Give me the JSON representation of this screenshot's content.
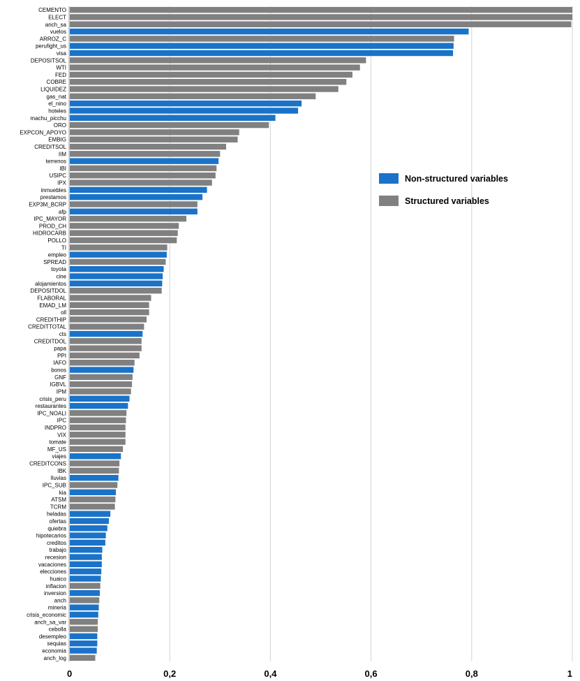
{
  "chart_data": {
    "type": "bar",
    "orientation": "horizontal",
    "xlim": [
      0,
      1
    ],
    "x_ticks": [
      "0",
      "0,2",
      "0,4",
      "0,6",
      "0,8",
      "1"
    ],
    "grid": "vertical",
    "legend_placement": "right",
    "legend": [
      {
        "name": "Non-structured variables",
        "color": "#1a73c8"
      },
      {
        "name": "Structured variables",
        "color": "#808080"
      }
    ],
    "bars": [
      {
        "label": "CEMENTO",
        "value": 1.0,
        "group": "structured"
      },
      {
        "label": "ELECT",
        "value": 1.0,
        "group": "structured"
      },
      {
        "label": "anch_sa",
        "value": 0.998,
        "group": "structured"
      },
      {
        "label": "vuelos",
        "value": 0.794,
        "group": "non-structured"
      },
      {
        "label": "ARROZ_C",
        "value": 0.765,
        "group": "structured"
      },
      {
        "label": "perufight_us",
        "value": 0.764,
        "group": "non-structured"
      },
      {
        "label": "visa",
        "value": 0.763,
        "group": "non-structured"
      },
      {
        "label": "DEPOSITSOL",
        "value": 0.59,
        "group": "structured"
      },
      {
        "label": "WTI",
        "value": 0.578,
        "group": "structured"
      },
      {
        "label": "FED",
        "value": 0.563,
        "group": "structured"
      },
      {
        "label": "COBRE",
        "value": 0.551,
        "group": "structured"
      },
      {
        "label": "LIQUIDEZ",
        "value": 0.535,
        "group": "structured"
      },
      {
        "label": "gas_nat",
        "value": 0.49,
        "group": "structured"
      },
      {
        "label": "el_nino",
        "value": 0.462,
        "group": "non-structured"
      },
      {
        "label": "hoteles",
        "value": 0.455,
        "group": "non-structured"
      },
      {
        "label": "machu_picchu",
        "value": 0.41,
        "group": "non-structured"
      },
      {
        "label": "ORO",
        "value": 0.397,
        "group": "structured"
      },
      {
        "label": "EXPCON_APOYO",
        "value": 0.338,
        "group": "structured"
      },
      {
        "label": "EMBIG",
        "value": 0.335,
        "group": "structured"
      },
      {
        "label": "CREDITSOL",
        "value": 0.312,
        "group": "structured"
      },
      {
        "label": "IIM",
        "value": 0.3,
        "group": "structured"
      },
      {
        "label": "terrenos",
        "value": 0.297,
        "group": "non-structured"
      },
      {
        "label": "IBI",
        "value": 0.293,
        "group": "structured"
      },
      {
        "label": "USIPC",
        "value": 0.291,
        "group": "structured"
      },
      {
        "label": "IPX",
        "value": 0.284,
        "group": "structured"
      },
      {
        "label": "inmuebles",
        "value": 0.274,
        "group": "non-structured"
      },
      {
        "label": "prestamos",
        "value": 0.265,
        "group": "non-structured"
      },
      {
        "label": "EXP3M_BCRP",
        "value": 0.255,
        "group": "structured"
      },
      {
        "label": "afp",
        "value": 0.255,
        "group": "non-structured"
      },
      {
        "label": "IPC_MAYOR",
        "value": 0.233,
        "group": "structured"
      },
      {
        "label": "PROD_CH",
        "value": 0.218,
        "group": "structured"
      },
      {
        "label": "HIDROCARB",
        "value": 0.216,
        "group": "structured"
      },
      {
        "label": "POLLO",
        "value": 0.214,
        "group": "structured"
      },
      {
        "label": "TI",
        "value": 0.195,
        "group": "structured"
      },
      {
        "label": "empleo",
        "value": 0.194,
        "group": "non-structured"
      },
      {
        "label": "SPREAD",
        "value": 0.192,
        "group": "structured"
      },
      {
        "label": "toyota",
        "value": 0.188,
        "group": "non-structured"
      },
      {
        "label": "cine",
        "value": 0.186,
        "group": "non-structured"
      },
      {
        "label": "alojamientos",
        "value": 0.185,
        "group": "non-structured"
      },
      {
        "label": "DEPOSITDOL",
        "value": 0.184,
        "group": "structured"
      },
      {
        "label": "FLABORAL",
        "value": 0.163,
        "group": "structured"
      },
      {
        "label": "EMAD_LM",
        "value": 0.159,
        "group": "structured"
      },
      {
        "label": "oll",
        "value": 0.159,
        "group": "structured"
      },
      {
        "label": "CREDITHIP",
        "value": 0.154,
        "group": "structured"
      },
      {
        "label": "CREDITTOTAL",
        "value": 0.149,
        "group": "structured"
      },
      {
        "label": "cts",
        "value": 0.146,
        "group": "non-structured"
      },
      {
        "label": "CREDITDOL",
        "value": 0.144,
        "group": "structured"
      },
      {
        "label": "papa",
        "value": 0.144,
        "group": "structured"
      },
      {
        "label": "PPI",
        "value": 0.14,
        "group": "structured"
      },
      {
        "label": "IAFO",
        "value": 0.13,
        "group": "structured"
      },
      {
        "label": "bonos",
        "value": 0.128,
        "group": "non-structured"
      },
      {
        "label": "GNF",
        "value": 0.126,
        "group": "structured"
      },
      {
        "label": "IGBVL",
        "value": 0.125,
        "group": "structured"
      },
      {
        "label": "IPM",
        "value": 0.123,
        "group": "structured"
      },
      {
        "label": "crisis_peru",
        "value": 0.12,
        "group": "non-structured"
      },
      {
        "label": "restaurantes",
        "value": 0.117,
        "group": "non-structured"
      },
      {
        "label": "IPC_NOALI",
        "value": 0.114,
        "group": "structured"
      },
      {
        "label": "IPC",
        "value": 0.113,
        "group": "structured"
      },
      {
        "label": "INDPRO",
        "value": 0.112,
        "group": "structured"
      },
      {
        "label": "VIX",
        "value": 0.112,
        "group": "structured"
      },
      {
        "label": "tomate",
        "value": 0.112,
        "group": "structured"
      },
      {
        "label": "MF_US",
        "value": 0.107,
        "group": "structured"
      },
      {
        "label": "viajes",
        "value": 0.103,
        "group": "non-structured"
      },
      {
        "label": "CREDITCONS",
        "value": 0.1,
        "group": "structured"
      },
      {
        "label": "IBK",
        "value": 0.099,
        "group": "structured"
      },
      {
        "label": "lluvias",
        "value": 0.098,
        "group": "non-structured"
      },
      {
        "label": "IPC_SUB",
        "value": 0.096,
        "group": "structured"
      },
      {
        "label": "kia",
        "value": 0.093,
        "group": "non-structured"
      },
      {
        "label": "ATSM",
        "value": 0.092,
        "group": "structured"
      },
      {
        "label": "TCRM",
        "value": 0.091,
        "group": "structured"
      },
      {
        "label": "heladas",
        "value": 0.082,
        "group": "non-structured"
      },
      {
        "label": "ofertas",
        "value": 0.079,
        "group": "non-structured"
      },
      {
        "label": "quiebra",
        "value": 0.076,
        "group": "non-structured"
      },
      {
        "label": "hipotecarios",
        "value": 0.073,
        "group": "non-structured"
      },
      {
        "label": "creditos",
        "value": 0.072,
        "group": "non-structured"
      },
      {
        "label": "trabajo",
        "value": 0.066,
        "group": "non-structured"
      },
      {
        "label": "recesion",
        "value": 0.065,
        "group": "non-structured"
      },
      {
        "label": "vacaciones",
        "value": 0.065,
        "group": "non-structured"
      },
      {
        "label": "elecciones",
        "value": 0.064,
        "group": "non-structured"
      },
      {
        "label": "huaico",
        "value": 0.063,
        "group": "non-structured"
      },
      {
        "label": "inflacion",
        "value": 0.062,
        "group": "structured"
      },
      {
        "label": "inversion",
        "value": 0.061,
        "group": "non-structured"
      },
      {
        "label": "anch",
        "value": 0.06,
        "group": "structured"
      },
      {
        "label": "mineria",
        "value": 0.059,
        "group": "non-structured"
      },
      {
        "label": "crisis_economic",
        "value": 0.058,
        "group": "non-structured"
      },
      {
        "label": "anch_sa_var",
        "value": 0.057,
        "group": "structured"
      },
      {
        "label": "cebolla",
        "value": 0.057,
        "group": "structured"
      },
      {
        "label": "desempleo",
        "value": 0.056,
        "group": "non-structured"
      },
      {
        "label": "sequias",
        "value": 0.056,
        "group": "non-structured"
      },
      {
        "label": "economia",
        "value": 0.055,
        "group": "non-structured"
      },
      {
        "label": "anch_log",
        "value": 0.052,
        "group": "structured"
      }
    ]
  }
}
